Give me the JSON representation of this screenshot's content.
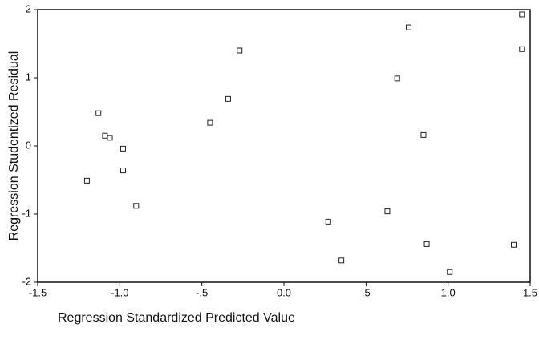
{
  "chart_data": {
    "type": "scatter",
    "x_label": "Regression Standardized Predicted Value",
    "y_label": "Regression Studentized Residual",
    "xlim": [
      -1.5,
      1.5
    ],
    "ylim": [
      -2,
      2
    ],
    "xticks": [
      {
        "value": -1.5,
        "label": "-1.5"
      },
      {
        "value": -1.0,
        "label": "-1.0"
      },
      {
        "value": -0.5,
        "label": "-.5"
      },
      {
        "value": 0,
        "label": "0.0"
      },
      {
        "value": 0.5,
        "label": ".5"
      },
      {
        "value": 1.0,
        "label": "1.0"
      },
      {
        "value": 1.5,
        "label": "1.5"
      }
    ],
    "yticks": [
      -2,
      -1,
      0,
      1,
      2
    ],
    "color": "#222222",
    "x": [
      -1.2,
      -1.13,
      -1.09,
      -1.06,
      -0.98,
      -0.98,
      -0.9,
      -0.45,
      -0.34,
      -0.27,
      0.27,
      0.35,
      0.63,
      0.69,
      0.76,
      0.85,
      0.87,
      1.01,
      1.4,
      1.45,
      1.45
    ],
    "values": [
      -0.51,
      0.48,
      0.15,
      0.12,
      -0.04,
      -0.36,
      -0.88,
      0.34,
      0.69,
      1.4,
      -1.11,
      -1.68,
      -0.96,
      0.99,
      1.74,
      0.16,
      -1.44,
      -1.85,
      -1.45,
      1.93,
      1.42
    ]
  }
}
